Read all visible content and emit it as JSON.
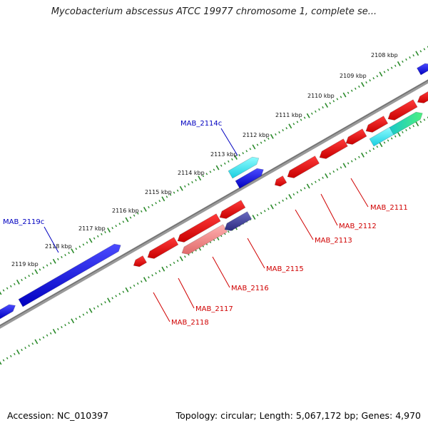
{
  "title": "Mycobacterium abscessus ATCC 19977 chromosome 1, complete se...",
  "footer": {
    "accession": "Accession: NC_010397",
    "summary": "Topology: circular; Length: 5,067,172 bp; Genes: 4,970"
  },
  "colors": {
    "backbone": "#808080",
    "tick_major": "#2a8a2a",
    "tick_minor": "#2a8a2a",
    "forward_gene": "#0000e0",
    "reverse_gene": "#e00000",
    "label_forward": "#0000c0",
    "label_reverse": "#d00000"
  },
  "scale_labels": [
    "2108 kbp",
    "2109 kbp",
    "2110 kbp",
    "2111 kbp",
    "2112 kbp",
    "2113 kbp",
    "2114 kbp",
    "2115 kbp",
    "2116 kbp",
    "2117 kbp",
    "2118 kbp",
    "2119 kbp"
  ],
  "gene_labels": {
    "forward": [
      "MAB_2114c",
      "MAB_2119c"
    ],
    "reverse": [
      "MAB_2111",
      "MAB_2112",
      "MAB_2113",
      "MAB_2115",
      "MAB_2116",
      "MAB_2117",
      "MAB_2118"
    ]
  }
}
